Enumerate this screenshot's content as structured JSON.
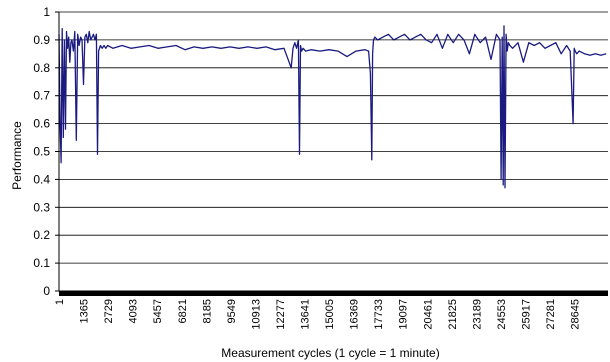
{
  "chart_data": {
    "type": "line",
    "title": "",
    "xlabel": "Measurement cycles (1 cycle = 1 minute)",
    "ylabel": "Performance",
    "ylim": [
      0,
      1
    ],
    "xlim": [
      1,
      30500
    ],
    "grid": "horizontal",
    "legend": "none",
    "y_ticks": [
      "0",
      "0.1",
      "0.2",
      "0.3",
      "0.4",
      "0.5",
      "0.6",
      "0.7",
      "0.8",
      "0.9",
      "1"
    ],
    "x_ticks": [
      {
        "value": 1,
        "label": "1"
      },
      {
        "value": 1365,
        "label": "1365"
      },
      {
        "value": 2729,
        "label": "2729"
      },
      {
        "value": 4093,
        "label": "4093"
      },
      {
        "value": 5457,
        "label": "5457"
      },
      {
        "value": 6821,
        "label": "6821"
      },
      {
        "value": 8185,
        "label": "8185"
      },
      {
        "value": 9549,
        "label": "9549"
      },
      {
        "value": 10913,
        "label": "10913"
      },
      {
        "value": 12277,
        "label": "12277"
      },
      {
        "value": 13641,
        "label": "13641"
      },
      {
        "value": 15005,
        "label": "15005"
      },
      {
        "value": 16369,
        "label": "16369"
      },
      {
        "value": 17733,
        "label": "17733"
      },
      {
        "value": 19097,
        "label": "19097"
      },
      {
        "value": 20461,
        "label": "20461"
      },
      {
        "value": 21825,
        "label": "21825"
      },
      {
        "value": 23189,
        "label": "23189"
      },
      {
        "value": 24553,
        "label": "24553"
      },
      {
        "value": 25917,
        "label": "25917"
      },
      {
        "value": 27281,
        "label": "27281"
      },
      {
        "value": 28645,
        "label": "28645"
      }
    ],
    "series": [
      {
        "color": "#1a1a80",
        "x": [
          1,
          60,
          120,
          180,
          240,
          300,
          360,
          420,
          480,
          540,
          600,
          660,
          720,
          800,
          880,
          960,
          1040,
          1120,
          1200,
          1280,
          1360,
          1440,
          1520,
          1600,
          1680,
          1760,
          1840,
          1920,
          2000,
          2080,
          2140,
          2200,
          2300,
          2400,
          2500,
          2600,
          2700,
          3000,
          3500,
          4000,
          4500,
          5000,
          5500,
          6000,
          6500,
          7000,
          7500,
          8000,
          8500,
          9000,
          9500,
          10000,
          10500,
          11000,
          11500,
          12000,
          12500,
          12900,
          13000,
          13100,
          13200,
          13300,
          13360,
          13420,
          13480,
          13560,
          13700,
          14000,
          14500,
          15000,
          15500,
          16000,
          16500,
          17000,
          17200,
          17300,
          17380,
          17420,
          17470,
          17550,
          17700,
          18000,
          18300,
          18600,
          18900,
          19200,
          19500,
          19800,
          20100,
          20400,
          20700,
          21000,
          21300,
          21600,
          21900,
          22200,
          22500,
          22800,
          23100,
          23400,
          23700,
          24000,
          24300,
          24500,
          24560,
          24620,
          24680,
          24720,
          24780,
          24840,
          24900,
          24960,
          25050,
          25200,
          25500,
          25800,
          26100,
          26400,
          26700,
          27000,
          27300,
          27600,
          27900,
          28200,
          28400,
          28560,
          28620,
          28680,
          28760,
          28900,
          29200,
          29500,
          29800,
          30100,
          30400
        ],
        "values": [
          0.92,
          0.6,
          0.46,
          0.94,
          0.55,
          0.9,
          0.58,
          0.93,
          0.87,
          0.91,
          0.82,
          0.89,
          0.9,
          0.86,
          0.93,
          0.54,
          0.92,
          0.88,
          0.91,
          0.9,
          0.74,
          0.91,
          0.92,
          0.89,
          0.93,
          0.9,
          0.91,
          0.92,
          0.9,
          0.92,
          0.49,
          0.86,
          0.88,
          0.87,
          0.88,
          0.87,
          0.88,
          0.87,
          0.88,
          0.87,
          0.875,
          0.88,
          0.87,
          0.875,
          0.88,
          0.865,
          0.875,
          0.87,
          0.875,
          0.87,
          0.875,
          0.87,
          0.875,
          0.87,
          0.875,
          0.865,
          0.87,
          0.8,
          0.87,
          0.89,
          0.87,
          0.9,
          0.49,
          0.88,
          0.86,
          0.87,
          0.86,
          0.865,
          0.86,
          0.865,
          0.86,
          0.84,
          0.86,
          0.865,
          0.86,
          0.78,
          0.47,
          0.85,
          0.9,
          0.91,
          0.9,
          0.91,
          0.92,
          0.9,
          0.91,
          0.92,
          0.9,
          0.91,
          0.92,
          0.9,
          0.89,
          0.92,
          0.87,
          0.92,
          0.89,
          0.92,
          0.9,
          0.85,
          0.92,
          0.89,
          0.91,
          0.83,
          0.92,
          0.9,
          0.4,
          0.91,
          0.38,
          0.95,
          0.37,
          0.92,
          0.86,
          0.89,
          0.88,
          0.87,
          0.89,
          0.82,
          0.89,
          0.88,
          0.89,
          0.87,
          0.88,
          0.89,
          0.85,
          0.88,
          0.86,
          0.6,
          0.87,
          0.86,
          0.85,
          0.86,
          0.85,
          0.845,
          0.85,
          0.845,
          0.85
        ]
      }
    ]
  }
}
